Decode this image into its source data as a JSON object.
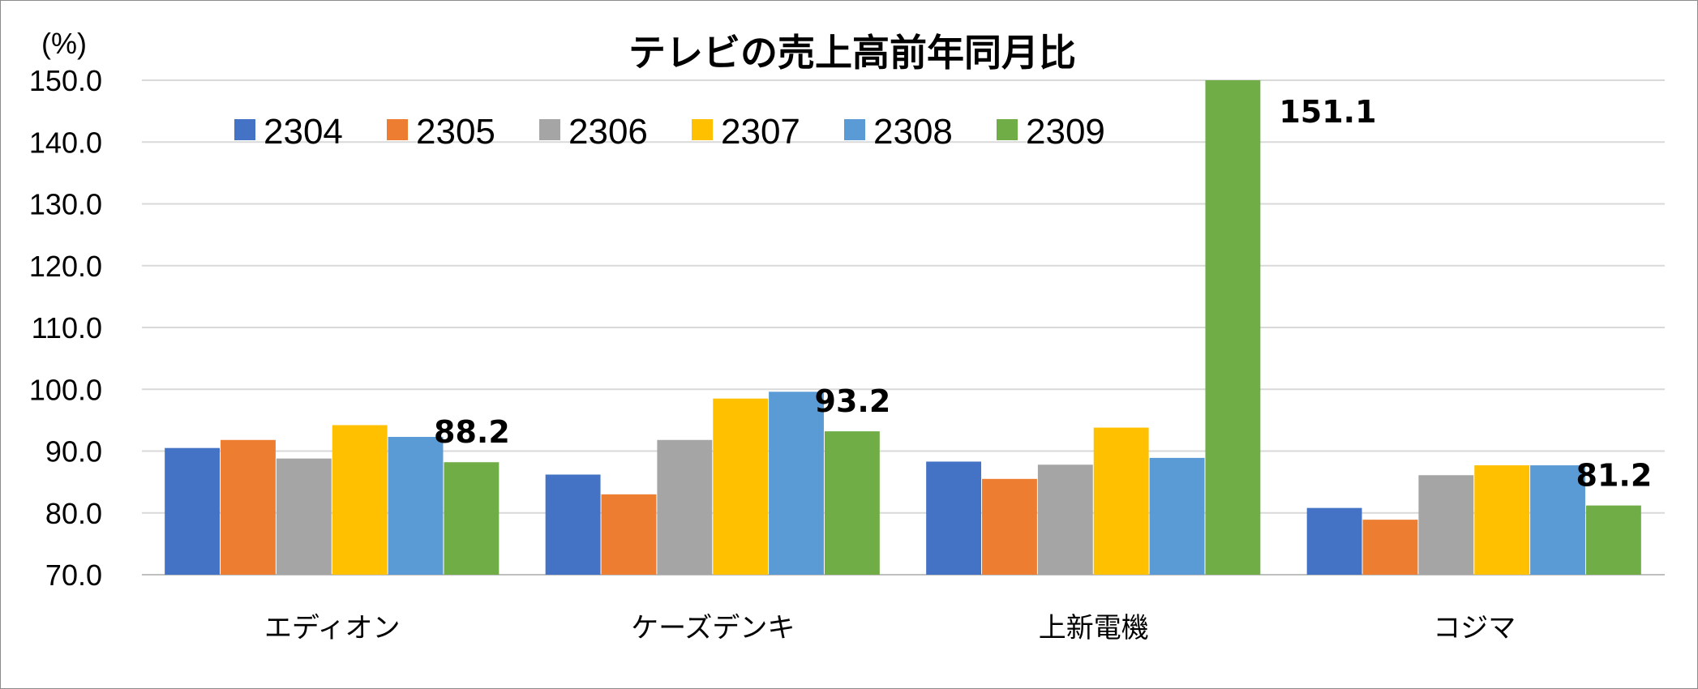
{
  "chart_data": {
    "type": "bar",
    "title": "テレビの売上高前年同月比",
    "ylabel": "(%)",
    "xlabel": "",
    "ylim": [
      70,
      150
    ],
    "yticks": [
      "150.0",
      "140.0",
      "130.0",
      "120.0",
      "110.0",
      "100.0",
      "90.0",
      "80.0",
      "70.0"
    ],
    "ytick_values": [
      150,
      140,
      130,
      120,
      110,
      100,
      90,
      80,
      70
    ],
    "grid": true,
    "legend_position": "top-left",
    "categories": [
      "エディオン",
      "ケーズデンキ",
      "上新電機",
      "コジマ"
    ],
    "series": [
      {
        "name": "2304",
        "color": "#4472C4",
        "values": [
          90.5,
          86.2,
          88.3,
          80.8
        ]
      },
      {
        "name": "2305",
        "color": "#ED7D31",
        "values": [
          91.8,
          83.0,
          85.5,
          78.9
        ]
      },
      {
        "name": "2306",
        "color": "#A5A5A5",
        "values": [
          88.8,
          91.8,
          87.8,
          86.1
        ]
      },
      {
        "name": "2307",
        "color": "#FFC000",
        "values": [
          94.2,
          98.5,
          93.8,
          87.7
        ]
      },
      {
        "name": "2308",
        "color": "#5B9BD5",
        "values": [
          92.3,
          99.6,
          88.9,
          87.7
        ]
      },
      {
        "name": "2309",
        "color": "#70AD47",
        "values": [
          88.2,
          93.2,
          151.1,
          81.2
        ]
      }
    ],
    "data_labels": [
      {
        "category": "エディオン",
        "series": "2309",
        "text": "88.2"
      },
      {
        "category": "ケーズデンキ",
        "series": "2309",
        "text": "93.2"
      },
      {
        "category": "上新電機",
        "series": "2309",
        "text": "151.1"
      },
      {
        "category": "コジマ",
        "series": "2309",
        "text": "81.2"
      }
    ]
  }
}
